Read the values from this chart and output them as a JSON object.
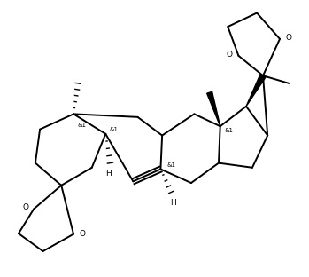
{
  "background_color": "#ffffff",
  "line_color": "#000000",
  "line_width": 1.4,
  "font_size": 6.5,
  "figsize": [
    3.49,
    3.12
  ],
  "dpi": 100,
  "xlim": [
    0,
    10
  ],
  "ylim": [
    0,
    9
  ]
}
